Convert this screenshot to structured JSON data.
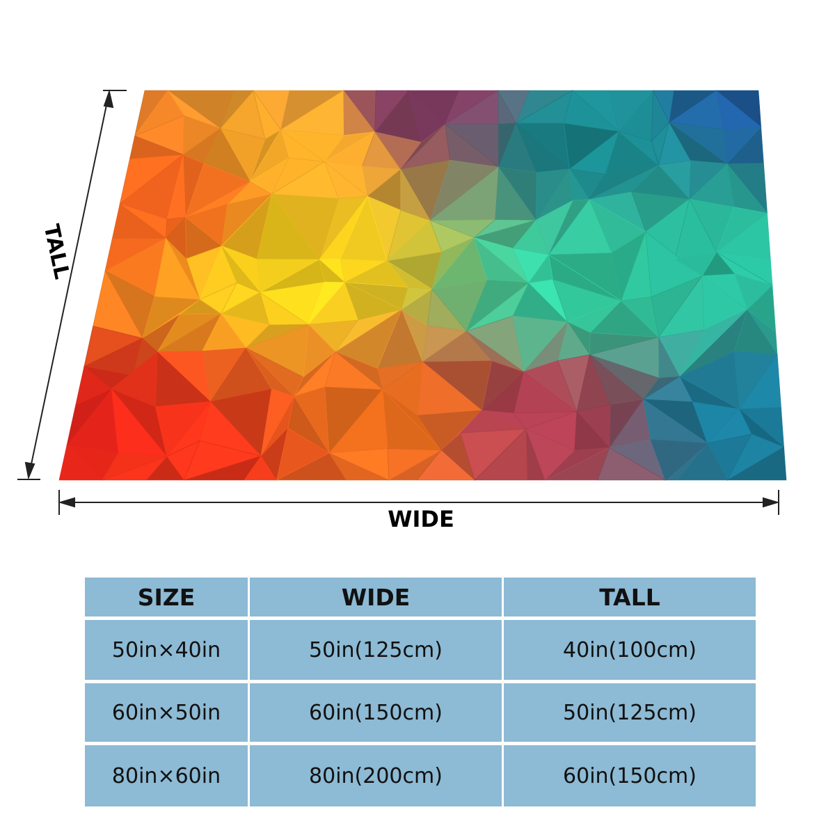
{
  "dimensions": {
    "tall": "TALL",
    "wide": "WIDE"
  },
  "table": {
    "header": [
      "SIZE",
      "WIDE",
      "TALL"
    ],
    "rows": [
      [
        "50in×40in",
        "50in(125cm)",
        "40in(100cm)"
      ],
      [
        "60in×50in",
        "60in(150cm)",
        "50in(125cm)"
      ],
      [
        "80in×60in",
        "80in(200cm)",
        "60in(150cm)"
      ]
    ]
  }
}
